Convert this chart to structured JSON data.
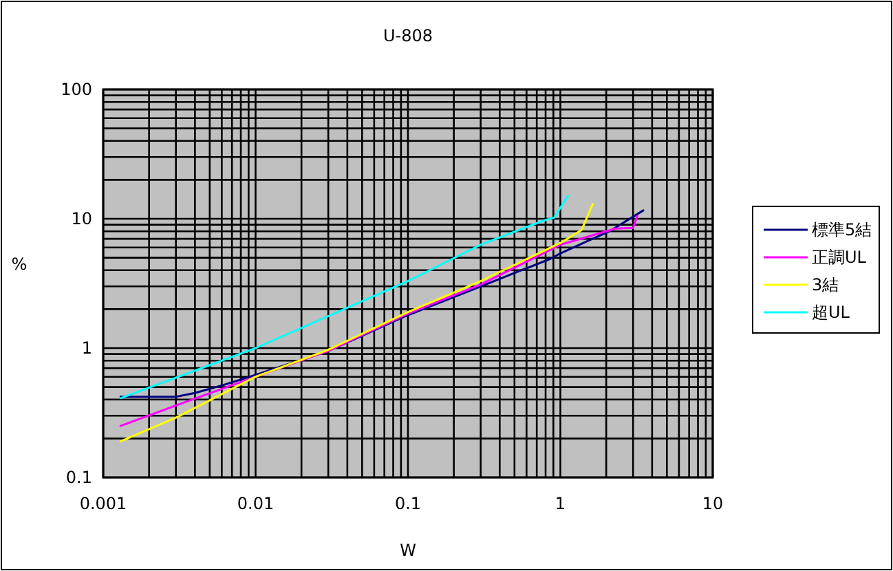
{
  "chart_data": {
    "type": "line",
    "title": "U-808",
    "xlabel": "W",
    "ylabel": "%",
    "log": "xy",
    "grid": true,
    "legend": "right",
    "xlim": [
      0.001,
      10
    ],
    "ylim": [
      0.1,
      100
    ],
    "xticks": [
      0.001,
      0.01,
      0.1,
      1,
      10
    ],
    "yticks": [
      0.1,
      1,
      10,
      100
    ],
    "series": [
      {
        "name": "標準5結",
        "color": "#000080",
        "x": [
          0.0013,
          0.003,
          0.004,
          0.0062,
          0.01,
          0.03,
          0.1,
          0.3,
          0.86,
          1.0,
          1.5,
          2.1,
          3.5
        ],
        "values": [
          0.42,
          0.42,
          0.45,
          0.52,
          0.62,
          0.95,
          1.8,
          3.0,
          4.9,
          5.4,
          6.7,
          8.0,
          11.6
        ]
      },
      {
        "name": "正調UL",
        "color": "#ff00ff",
        "x": [
          0.0013,
          0.003,
          0.01,
          0.03,
          0.1,
          0.3,
          1.0,
          2.3,
          3.0,
          3.2
        ],
        "values": [
          0.25,
          0.36,
          0.6,
          0.95,
          1.85,
          3.1,
          6.3,
          8.4,
          8.5,
          10.5
        ]
      },
      {
        "name": "3結",
        "color": "#ffff00",
        "x": [
          0.0013,
          0.003,
          0.01,
          0.03,
          0.1,
          0.3,
          1.0,
          1.38,
          1.63
        ],
        "values": [
          0.19,
          0.29,
          0.6,
          0.97,
          1.9,
          3.3,
          6.5,
          8.2,
          13
        ]
      },
      {
        "name": "超UL",
        "color": "#00ffff",
        "x": [
          0.0013,
          0.01,
          0.1,
          0.3,
          0.78,
          0.91,
          1.12
        ],
        "values": [
          0.41,
          1.0,
          3.3,
          6.3,
          9.7,
          10.2,
          15
        ]
      }
    ]
  }
}
